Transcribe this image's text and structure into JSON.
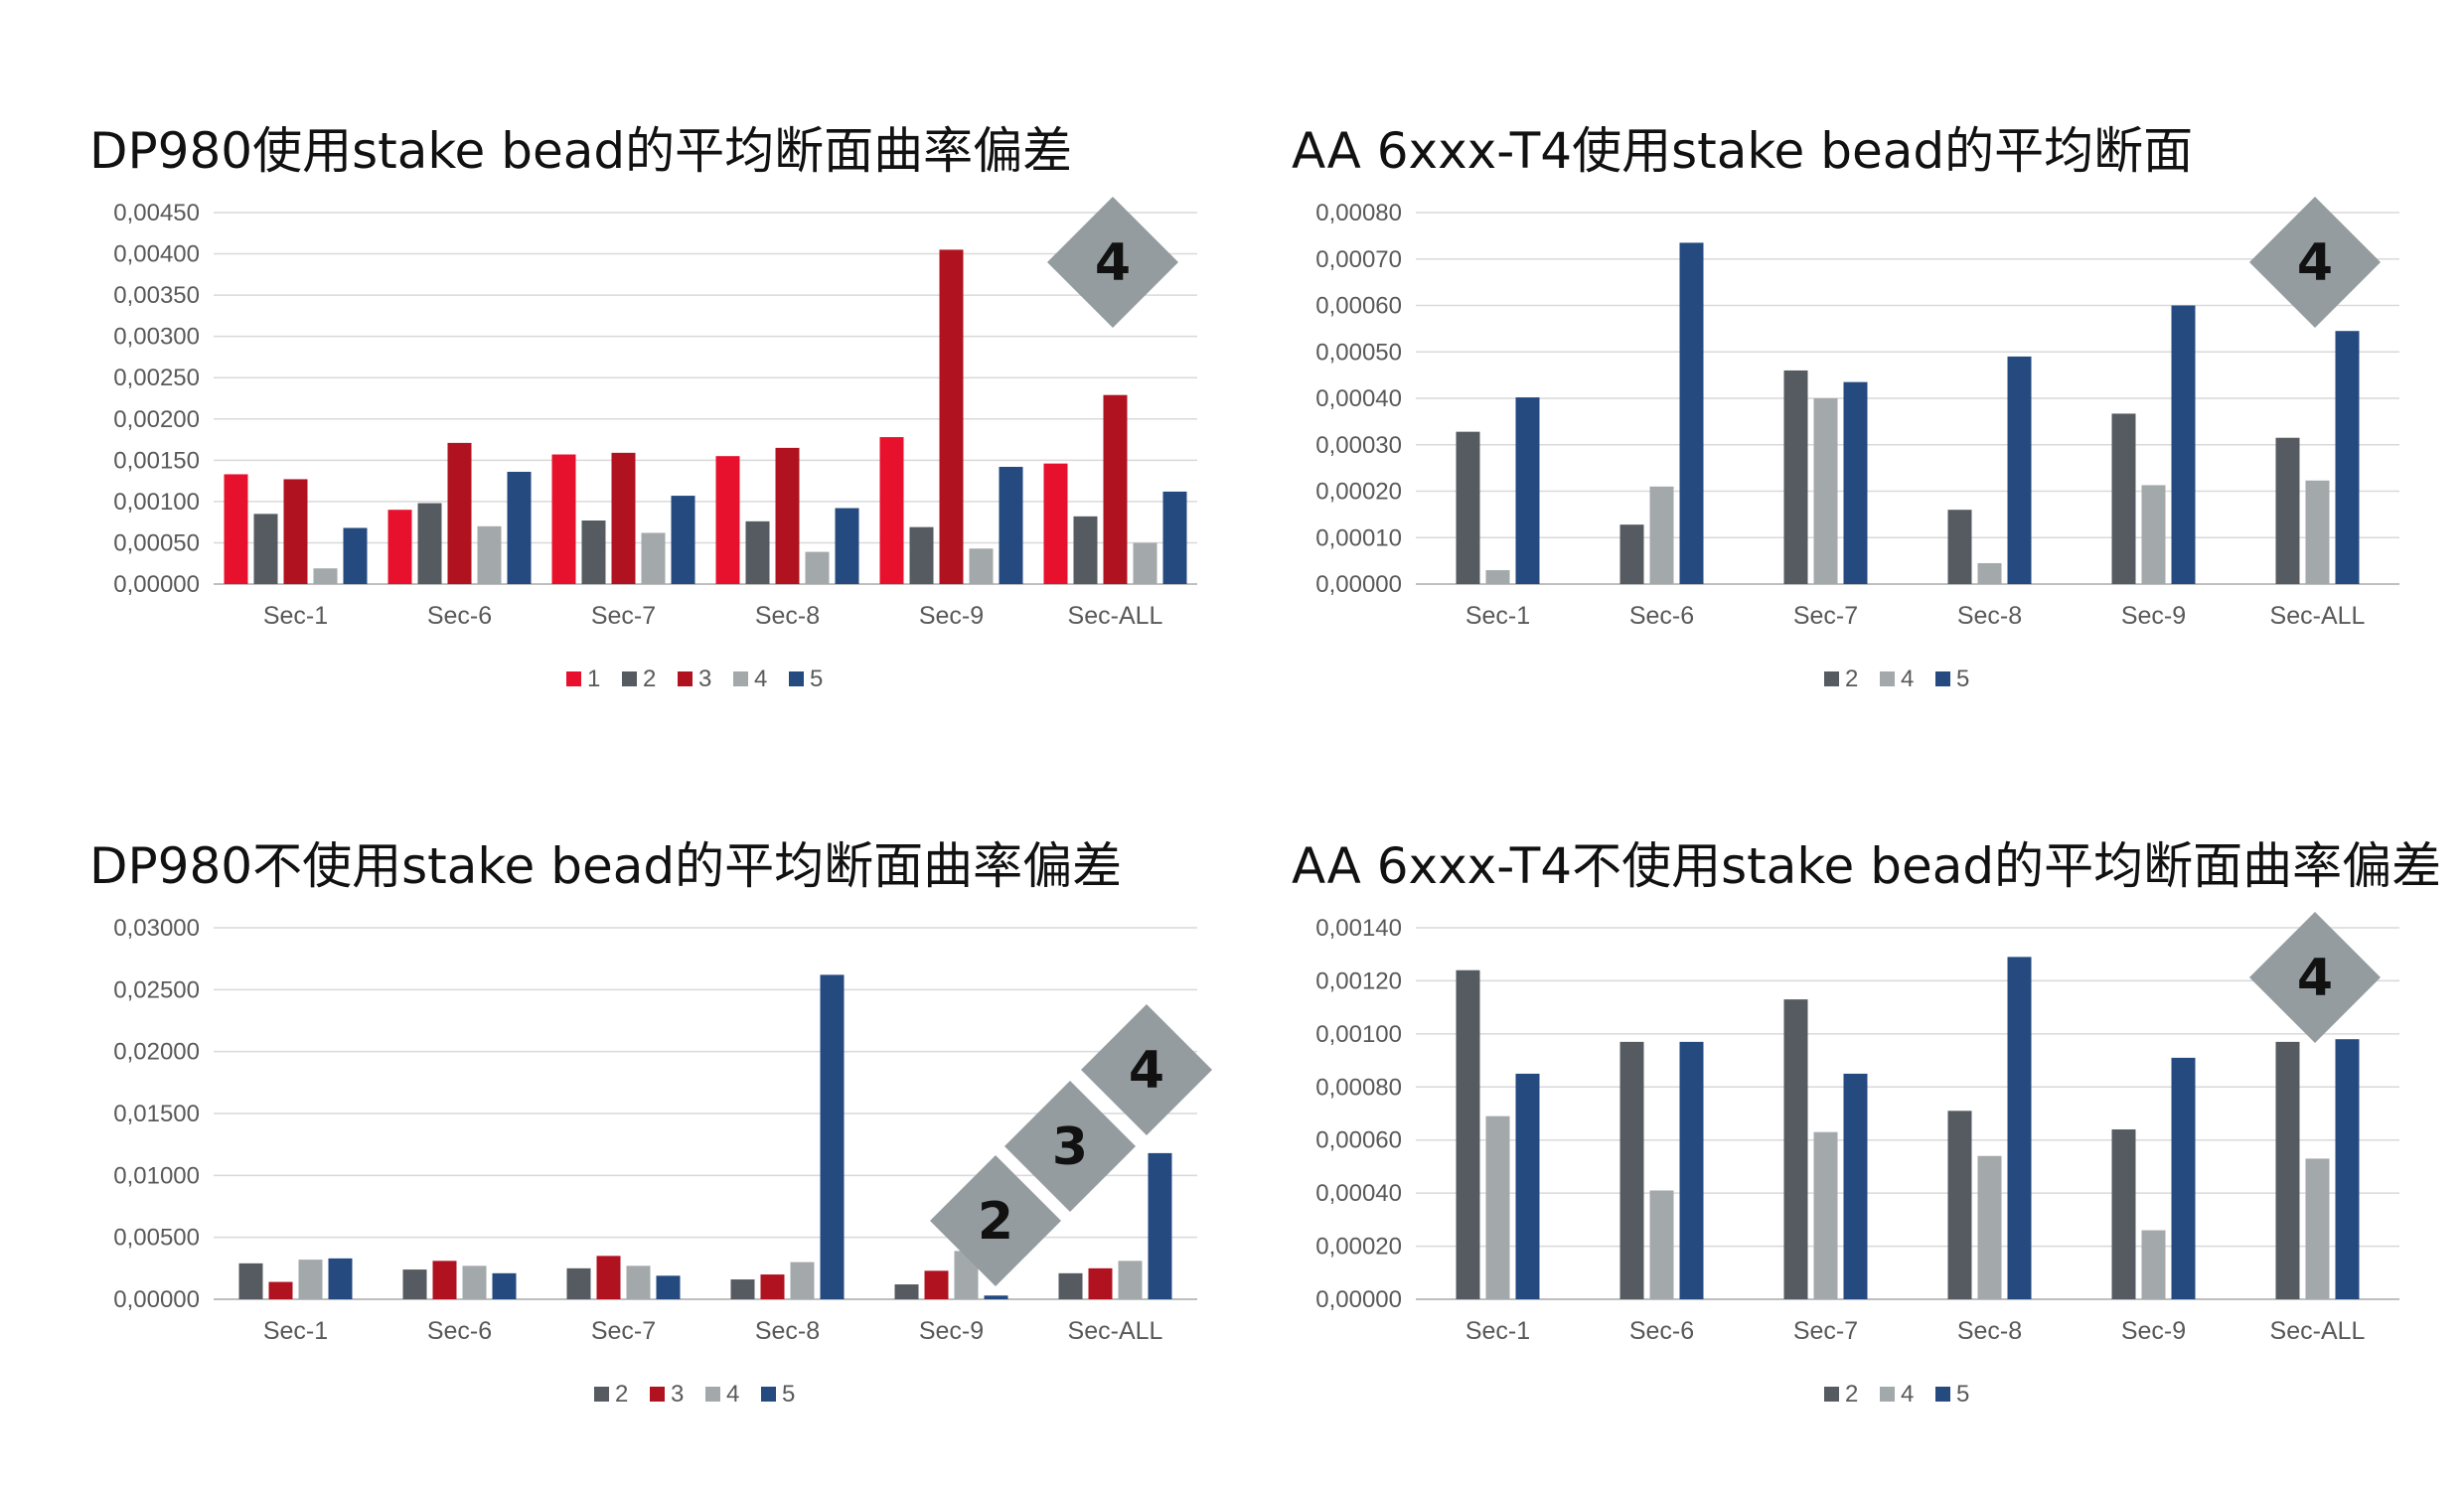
{
  "colors": {
    "1": "#e8112d",
    "2": "#555b60",
    "3": "#b0121f",
    "4": "#a3a8ab",
    "5": "#244a80",
    "grid": "#d9d9d9",
    "axis": "#bfbfbf",
    "badge": "#959ca0"
  },
  "chart_data": [
    {
      "type": "bar",
      "title": "DP980使用stake bead的平均断面曲率偏差",
      "categories": [
        "Sec-1",
        "Sec-6",
        "Sec-7",
        "Sec-8",
        "Sec-9",
        "Sec-ALL"
      ],
      "ylim": [
        0,
        0.0045
      ],
      "y_ticks": [
        "0,00000",
        "0,00050",
        "0,00100",
        "0,00150",
        "0,00200",
        "0,00250",
        "0,00300",
        "0,00350",
        "0,00400",
        "0,00450"
      ],
      "grid": true,
      "legend_position": "bottom",
      "series": [
        {
          "name": "1",
          "values": [
            0.00133,
            0.0009,
            0.00157,
            0.00155,
            0.00178,
            0.00146
          ]
        },
        {
          "name": "2",
          "values": [
            0.00085,
            0.00098,
            0.00077,
            0.00076,
            0.00069,
            0.00082
          ]
        },
        {
          "name": "3",
          "values": [
            0.00127,
            0.00171,
            0.00159,
            0.00165,
            0.00405,
            0.00229
          ]
        },
        {
          "name": "4",
          "values": [
            0.00019,
            0.0007,
            0.00062,
            0.00039,
            0.00043,
            0.0005
          ]
        },
        {
          "name": "5",
          "values": [
            0.00068,
            0.00136,
            0.00107,
            0.00092,
            0.00142,
            0.00112
          ]
        }
      ],
      "badges": [
        "4"
      ]
    },
    {
      "type": "bar",
      "title": "AA 6xxx-T4使用stake bead的平均断面",
      "categories": [
        "Sec-1",
        "Sec-6",
        "Sec-7",
        "Sec-8",
        "Sec-9",
        "Sec-ALL"
      ],
      "ylim": [
        0,
        0.0008
      ],
      "y_ticks": [
        "0,00000",
        "0,00010",
        "0,00020",
        "0,00030",
        "0,00040",
        "0,00050",
        "0,00060",
        "0,00070",
        "0,00080"
      ],
      "grid": true,
      "legend_position": "bottom",
      "series": [
        {
          "name": "2",
          "values": [
            0.000328,
            0.000128,
            0.00046,
            0.00016,
            0.000367,
            0.000315
          ]
        },
        {
          "name": "4",
          "values": [
            3e-05,
            0.00021,
            0.0004,
            4.5e-05,
            0.000213,
            0.000223
          ]
        },
        {
          "name": "5",
          "values": [
            0.000402,
            0.000735,
            0.000435,
            0.00049,
            0.0006,
            0.000545
          ]
        }
      ],
      "badges": [
        "4"
      ]
    },
    {
      "type": "bar",
      "title": "DP980不使用stake bead的平均断面曲率偏差",
      "categories": [
        "Sec-1",
        "Sec-6",
        "Sec-7",
        "Sec-8",
        "Sec-9",
        "Sec-ALL"
      ],
      "ylim": [
        0,
        0.03
      ],
      "y_ticks": [
        "0,00000",
        "0,00500",
        "0,01000",
        "0,01500",
        "0,02000",
        "0,02500",
        "0,03000"
      ],
      "grid": true,
      "legend_position": "bottom",
      "series": [
        {
          "name": "2",
          "values": [
            0.0029,
            0.0024,
            0.0025,
            0.0016,
            0.0012,
            0.0021
          ]
        },
        {
          "name": "3",
          "values": [
            0.0014,
            0.0031,
            0.0035,
            0.002,
            0.0023,
            0.0025
          ]
        },
        {
          "name": "4",
          "values": [
            0.0032,
            0.0027,
            0.0027,
            0.003,
            0.0039,
            0.0031
          ]
        },
        {
          "name": "5",
          "values": [
            0.0033,
            0.0021,
            0.0019,
            0.0262,
            0.0003,
            0.0118
          ]
        }
      ],
      "badges": [
        "2",
        "3",
        "4"
      ]
    },
    {
      "type": "bar",
      "title": "AA 6xxx-T4不使用stake bead的平均断面曲率偏差",
      "categories": [
        "Sec-1",
        "Sec-6",
        "Sec-7",
        "Sec-8",
        "Sec-9",
        "Sec-ALL"
      ],
      "ylim": [
        0,
        0.0014
      ],
      "y_ticks": [
        "0,00000",
        "0,00020",
        "0,00040",
        "0,00060",
        "0,00080",
        "0,00100",
        "0,00120",
        "0,00140"
      ],
      "grid": true,
      "legend_position": "bottom",
      "series": [
        {
          "name": "2",
          "values": [
            0.00124,
            0.00097,
            0.00113,
            0.00071,
            0.00064,
            0.00097
          ]
        },
        {
          "name": "4",
          "values": [
            0.00069,
            0.00041,
            0.00063,
            0.00054,
            0.00026,
            0.00053
          ]
        },
        {
          "name": "5",
          "values": [
            0.00085,
            0.00097,
            0.00085,
            0.00129,
            0.00091,
            0.00098
          ]
        }
      ],
      "badges": [
        "4"
      ]
    }
  ]
}
